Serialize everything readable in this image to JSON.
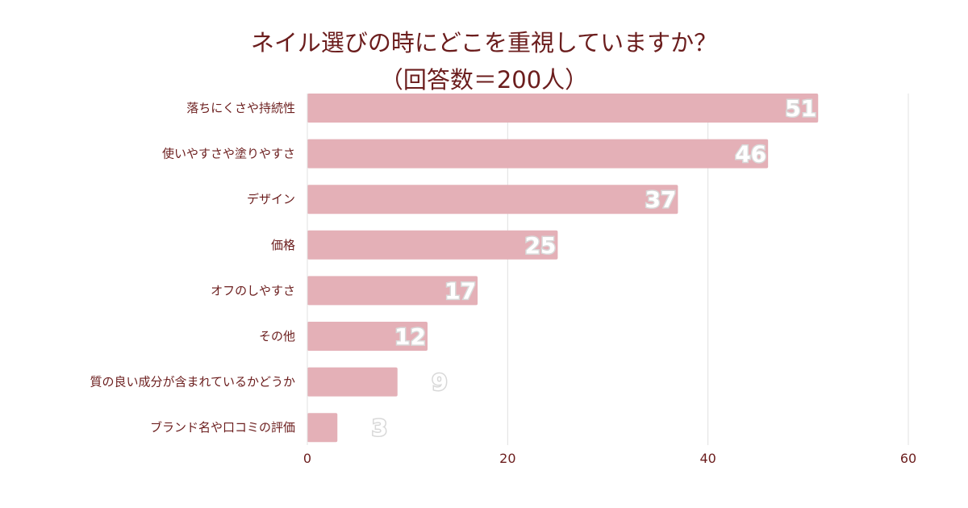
{
  "chart_data": {
    "type": "bar",
    "orientation": "horizontal",
    "title": "ネイル選びの時にどこを重視していますか？",
    "subtitle": "（回答数＝200人）",
    "categories": [
      "落ちにくさや持続性",
      "使いやすさや塗りやすさ",
      "デザイン",
      "価格",
      "オフのしやすさ",
      "その他",
      "質の良い成分が含まれているかどうか",
      "ブランド名や口コミの評価"
    ],
    "values": [
      51,
      46,
      37,
      25,
      17,
      12,
      9,
      3
    ],
    "xlim": [
      0,
      60
    ],
    "xticks": [
      0,
      20,
      40,
      60
    ],
    "grid": true,
    "bar_color": "#e4b0b7",
    "text_color": "#6b1d1d",
    "grid_color": "#e0e0e0"
  }
}
